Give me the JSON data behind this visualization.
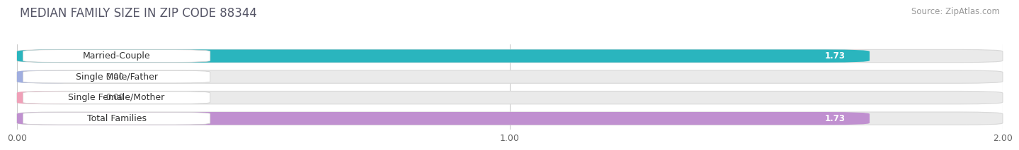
{
  "title": "MEDIAN FAMILY SIZE IN ZIP CODE 88344",
  "source": "Source: ZipAtlas.com",
  "categories": [
    "Married-Couple",
    "Single Male/Father",
    "Single Female/Mother",
    "Total Families"
  ],
  "values": [
    1.73,
    0.0,
    0.0,
    1.73
  ],
  "bar_colors": [
    "#2ab5be",
    "#a0aee0",
    "#f0a0b8",
    "#c090d0"
  ],
  "xlim": [
    0,
    2.0
  ],
  "xticks": [
    0.0,
    1.0,
    2.0
  ],
  "xtick_labels": [
    "0.00",
    "1.00",
    "2.00"
  ],
  "background_color": "#ffffff",
  "bar_bg_color": "#eaeaea",
  "bar_bg_edge_color": "#d8d8d8",
  "title_fontsize": 12,
  "source_fontsize": 8.5,
  "bar_height": 0.62,
  "value_fontsize": 8.5,
  "label_fontsize": 9
}
